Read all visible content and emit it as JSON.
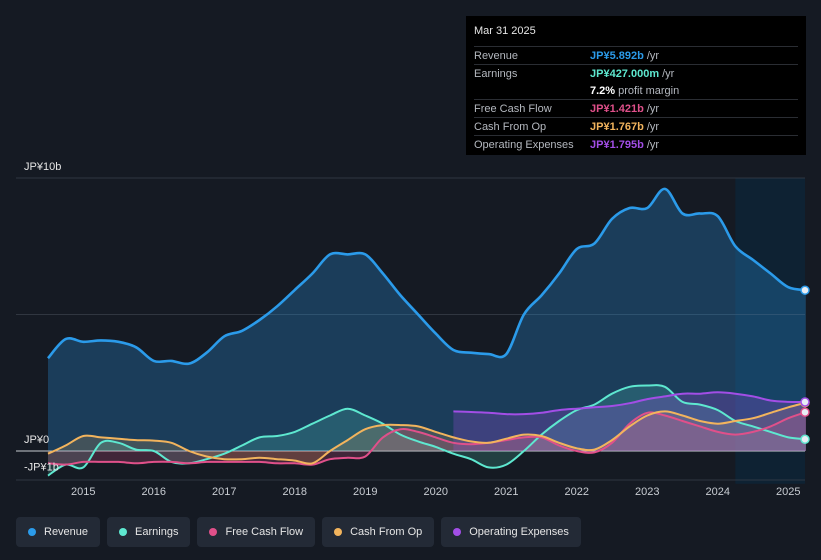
{
  "tooltip": {
    "date": "Mar 31 2025",
    "rows": [
      {
        "label": "Revenue",
        "value": "JP¥5.892b",
        "unit": "/yr",
        "color": "#2b9bea"
      },
      {
        "label": "Earnings",
        "value": "JP¥427.000m",
        "unit": "/yr",
        "color": "#5ee8d0"
      },
      {
        "label": "",
        "value": "7.2%",
        "unit": "profit margin",
        "color": "#ffffff"
      },
      {
        "label": "Free Cash Flow",
        "value": "JP¥1.421b",
        "unit": "/yr",
        "color": "#e0508a"
      },
      {
        "label": "Cash From Op",
        "value": "JP¥1.767b",
        "unit": "/yr",
        "color": "#f2b45d"
      },
      {
        "label": "Operating Expenses",
        "value": "JP¥1.795b",
        "unit": "/yr",
        "color": "#a24ee6"
      }
    ]
  },
  "legend": [
    {
      "label": "Revenue",
      "color": "#2b9bea"
    },
    {
      "label": "Earnings",
      "color": "#5ee8d0"
    },
    {
      "label": "Free Cash Flow",
      "color": "#e0508a"
    },
    {
      "label": "Cash From Op",
      "color": "#f2b45d"
    },
    {
      "label": "Operating Expenses",
      "color": "#a24ee6"
    }
  ],
  "chart_data": {
    "type": "area",
    "y_unit": "JP¥ billions",
    "ylim": [
      -1.2,
      10
    ],
    "xlim": [
      2014.0,
      2025.25
    ],
    "y_tick_labels": [
      {
        "value": 10,
        "label": "JP¥10b"
      },
      {
        "value": 0,
        "label": "JP¥0"
      },
      {
        "value": -1,
        "label": "-JP¥1b"
      }
    ],
    "x_tick_labels": [
      "2015",
      "2016",
      "2017",
      "2018",
      "2019",
      "2020",
      "2021",
      "2022",
      "2023",
      "2024",
      "2025"
    ],
    "x_tick_values": [
      2015,
      2016,
      2017,
      2018,
      2019,
      2020,
      2021,
      2022,
      2023,
      2024,
      2025
    ],
    "highlight_from": 2024.25,
    "series": [
      {
        "name": "Revenue",
        "color": "#2b9bea",
        "x": [
          2014.5,
          2014.75,
          2015,
          2015.25,
          2015.5,
          2015.75,
          2016,
          2016.25,
          2016.5,
          2016.75,
          2017,
          2017.25,
          2017.5,
          2017.75,
          2018,
          2018.25,
          2018.5,
          2018.75,
          2019,
          2019.25,
          2019.5,
          2019.75,
          2020,
          2020.25,
          2020.5,
          2020.75,
          2021,
          2021.25,
          2021.5,
          2021.75,
          2022,
          2022.25,
          2022.5,
          2022.75,
          2023,
          2023.25,
          2023.5,
          2023.75,
          2024,
          2024.25,
          2024.5,
          2024.75,
          2025,
          2025.25
        ],
        "y": [
          3.4,
          4.1,
          4.0,
          4.05,
          4.0,
          3.8,
          3.3,
          3.3,
          3.2,
          3.6,
          4.2,
          4.4,
          4.8,
          5.3,
          5.9,
          6.5,
          7.2,
          7.2,
          7.2,
          6.5,
          5.7,
          5.0,
          4.3,
          3.7,
          3.6,
          3.55,
          3.55,
          5.0,
          5.7,
          6.5,
          7.4,
          7.6,
          8.5,
          8.9,
          8.9,
          9.6,
          8.7,
          8.7,
          8.6,
          7.5,
          7.0,
          6.5,
          6.0,
          5.89
        ]
      },
      {
        "name": "Earnings",
        "color": "#5ee8d0",
        "x": [
          2014.5,
          2014.75,
          2015,
          2015.25,
          2015.5,
          2015.75,
          2016,
          2016.25,
          2016.5,
          2016.75,
          2017,
          2017.25,
          2017.5,
          2017.75,
          2018,
          2018.25,
          2018.5,
          2018.75,
          2019,
          2019.25,
          2019.5,
          2019.75,
          2020,
          2020.25,
          2020.5,
          2020.75,
          2021,
          2021.25,
          2021.5,
          2021.75,
          2022,
          2022.25,
          2022.5,
          2022.75,
          2023,
          2023.25,
          2023.5,
          2023.75,
          2024,
          2024.25,
          2024.5,
          2024.75,
          2025,
          2025.25
        ],
        "y": [
          -0.9,
          -0.5,
          -0.6,
          0.3,
          0.3,
          0.05,
          0.0,
          -0.4,
          -0.45,
          -0.3,
          -0.1,
          0.2,
          0.5,
          0.55,
          0.7,
          1.0,
          1.3,
          1.55,
          1.3,
          1.0,
          0.6,
          0.35,
          0.15,
          -0.1,
          -0.3,
          -0.6,
          -0.5,
          0.0,
          0.6,
          1.1,
          1.5,
          1.7,
          2.1,
          2.35,
          2.4,
          2.35,
          1.8,
          1.7,
          1.5,
          1.1,
          0.9,
          0.7,
          0.5,
          0.43
        ]
      },
      {
        "name": "Free Cash Flow",
        "color": "#e0508a",
        "x": [
          2014.5,
          2014.75,
          2015,
          2015.25,
          2015.5,
          2015.75,
          2016,
          2016.25,
          2016.5,
          2016.75,
          2017,
          2017.25,
          2017.5,
          2017.75,
          2018,
          2018.25,
          2018.5,
          2018.75,
          2019,
          2019.25,
          2019.5,
          2019.75,
          2020,
          2020.25,
          2020.5,
          2020.75,
          2021,
          2021.25,
          2021.5,
          2021.75,
          2022,
          2022.25,
          2022.5,
          2022.75,
          2023,
          2023.25,
          2023.5,
          2023.75,
          2024,
          2024.25,
          2024.5,
          2024.75,
          2025,
          2025.25
        ],
        "y": [
          -0.45,
          -0.5,
          -0.4,
          -0.4,
          -0.4,
          -0.45,
          -0.4,
          -0.4,
          -0.45,
          -0.4,
          -0.4,
          -0.4,
          -0.4,
          -0.45,
          -0.45,
          -0.5,
          -0.3,
          -0.25,
          -0.2,
          0.5,
          0.8,
          0.7,
          0.5,
          0.3,
          0.25,
          0.3,
          0.4,
          0.5,
          0.5,
          0.2,
          0.0,
          -0.05,
          0.3,
          1.0,
          1.4,
          1.3,
          1.1,
          0.9,
          0.7,
          0.6,
          0.7,
          0.9,
          1.2,
          1.42
        ]
      },
      {
        "name": "Cash From Op",
        "color": "#f2b45d",
        "x": [
          2014.5,
          2014.75,
          2015,
          2015.25,
          2015.5,
          2015.75,
          2016,
          2016.25,
          2016.5,
          2016.75,
          2017,
          2017.25,
          2017.5,
          2017.75,
          2018,
          2018.25,
          2018.5,
          2018.75,
          2019,
          2019.25,
          2019.5,
          2019.75,
          2020,
          2020.25,
          2020.5,
          2020.75,
          2021,
          2021.25,
          2021.5,
          2021.75,
          2022,
          2022.25,
          2022.5,
          2022.75,
          2023,
          2023.25,
          2023.5,
          2023.75,
          2024,
          2024.25,
          2024.5,
          2024.75,
          2025,
          2025.25
        ],
        "y": [
          -0.1,
          0.2,
          0.55,
          0.5,
          0.45,
          0.4,
          0.38,
          0.3,
          0.0,
          -0.2,
          -0.3,
          -0.3,
          -0.25,
          -0.3,
          -0.35,
          -0.45,
          0.0,
          0.4,
          0.8,
          0.95,
          0.95,
          0.9,
          0.7,
          0.5,
          0.35,
          0.3,
          0.45,
          0.6,
          0.55,
          0.3,
          0.1,
          0.05,
          0.4,
          0.9,
          1.3,
          1.45,
          1.3,
          1.1,
          1.0,
          1.1,
          1.2,
          1.4,
          1.6,
          1.77
        ]
      },
      {
        "name": "Operating Expenses",
        "color": "#a24ee6",
        "x": [
          2020.25,
          2020.5,
          2020.75,
          2021,
          2021.25,
          2021.5,
          2021.75,
          2022,
          2022.25,
          2022.5,
          2022.75,
          2023,
          2023.25,
          2023.5,
          2023.75,
          2024,
          2024.25,
          2024.5,
          2024.75,
          2025,
          2025.25
        ],
        "y": [
          1.45,
          1.43,
          1.4,
          1.35,
          1.35,
          1.4,
          1.5,
          1.55,
          1.6,
          1.65,
          1.75,
          1.9,
          2.0,
          2.1,
          2.1,
          2.15,
          2.1,
          2.0,
          1.85,
          1.8,
          1.795
        ]
      }
    ]
  }
}
